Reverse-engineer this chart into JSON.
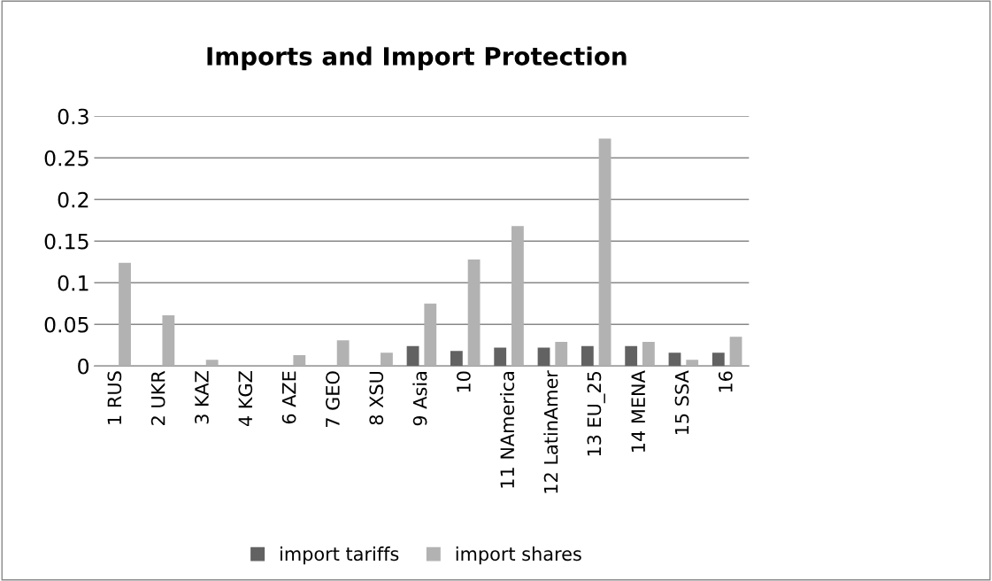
{
  "chart_data": {
    "type": "bar",
    "title": "Imports and Import Protection",
    "categories": [
      "1 RUS",
      "2 UKR",
      "3 KAZ",
      "4 KGZ",
      "6 AZE",
      "7 GEO",
      "8 XSU",
      "9 Asia",
      "10",
      "11 NAmerica",
      "12 LatinAmer",
      "13 EU_25",
      "14 MENA",
      "15 SSA",
      "16"
    ],
    "series": [
      {
        "name": "import tariffs",
        "color": "#626262",
        "values": [
          0,
          0,
          0,
          0,
          0,
          0,
          0,
          0.024,
          0.018,
          0.022,
          0.022,
          0.024,
          0.024,
          0.016,
          0.016
        ]
      },
      {
        "name": "import shares",
        "color": "#b2b2b2",
        "values": [
          0.124,
          0.061,
          0.0075,
          0,
          0.013,
          0.031,
          0.016,
          0.075,
          0.128,
          0.168,
          0.029,
          0.273,
          0.029,
          0.0076,
          0.035
        ]
      }
    ],
    "ylim": [
      0,
      0.3
    ],
    "yticks": [
      0,
      0.05,
      0.1,
      0.15,
      0.2,
      0.25,
      0.3
    ],
    "grid": "y",
    "legend": "bottom"
  }
}
